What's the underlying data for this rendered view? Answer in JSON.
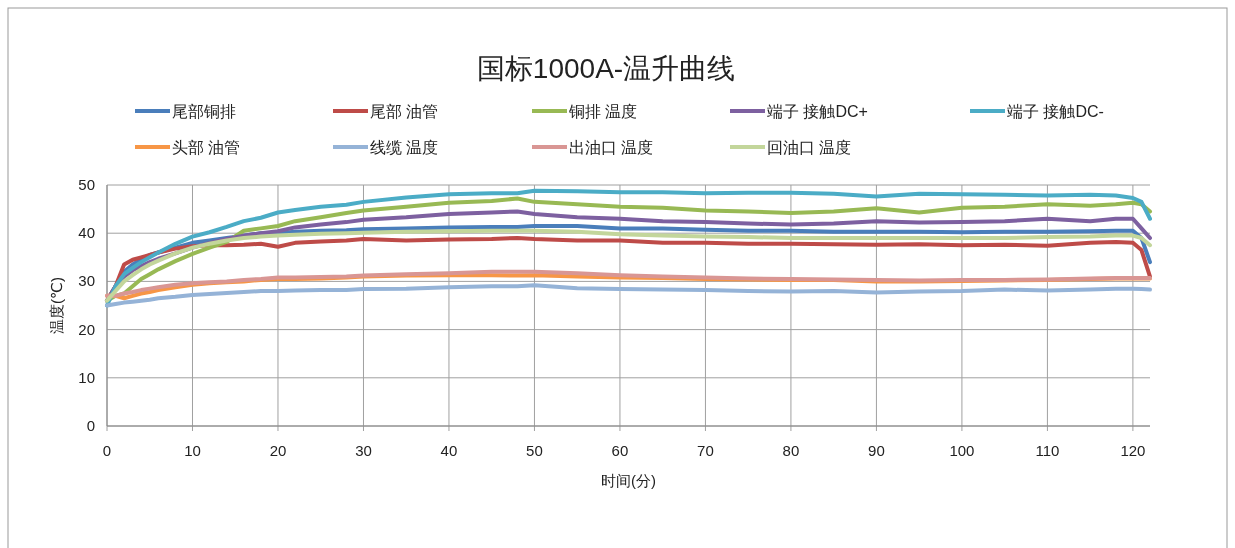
{
  "chart_data": {
    "type": "line",
    "title": "国标1000A-温升曲线",
    "xlabel": "时间(分)",
    "ylabel": "温度(℃)",
    "x": [
      0,
      1,
      2,
      3,
      4,
      5,
      6,
      8,
      10,
      12,
      14,
      16,
      18,
      20,
      22,
      25,
      28,
      30,
      35,
      40,
      45,
      48,
      50,
      55,
      60,
      65,
      70,
      75,
      80,
      85,
      90,
      95,
      100,
      105,
      110,
      115,
      118,
      120,
      121,
      122
    ],
    "xlim": [
      0,
      122
    ],
    "ylim": [
      0,
      50
    ],
    "xticks": [
      0,
      10,
      20,
      30,
      40,
      50,
      60,
      70,
      80,
      90,
      100,
      110,
      120
    ],
    "yticks": [
      0,
      10,
      20,
      30,
      40,
      50
    ],
    "grid": true,
    "legend": "top",
    "series": [
      {
        "name": "尾部铜排",
        "color": "#4a7ebb",
        "values": [
          26,
          29,
          32,
          33.5,
          34.5,
          35.5,
          36,
          37,
          38,
          38.5,
          39,
          39.5,
          40,
          40,
          40.3,
          40.5,
          40.6,
          40.8,
          41,
          41.2,
          41.3,
          41.3,
          41.5,
          41.5,
          41,
          41,
          40.7,
          40.5,
          40.5,
          40.3,
          40.3,
          40.3,
          40.2,
          40.3,
          40.3,
          40.4,
          40.5,
          40.5,
          39,
          34
        ]
      },
      {
        "name": "尾部 油管",
        "color": "#be4b48",
        "values": [
          26,
          29,
          33.5,
          34.5,
          35,
          35.5,
          36,
          36.8,
          37.3,
          37.5,
          37.5,
          37.6,
          37.8,
          37.2,
          38,
          38.3,
          38.5,
          38.8,
          38.5,
          38.7,
          38.8,
          39,
          38.8,
          38.5,
          38.5,
          38,
          38,
          37.8,
          37.8,
          37.7,
          37.6,
          37.7,
          37.5,
          37.6,
          37.4,
          38,
          38.2,
          38,
          36.5,
          31
        ]
      },
      {
        "name": "铜排 温度",
        "color": "#98b954",
        "values": [
          26,
          27,
          27.5,
          29,
          30.5,
          31.5,
          32.5,
          34.2,
          35.7,
          37,
          38.2,
          40.5,
          41,
          41.5,
          42.5,
          43.3,
          44.2,
          44.7,
          45.5,
          46.3,
          46.7,
          47.2,
          46.5,
          46,
          45.5,
          45.3,
          44.7,
          44.5,
          44.2,
          44.5,
          45.2,
          44.3,
          45.3,
          45.5,
          46,
          45.7,
          46,
          46.3,
          46,
          44.5
        ]
      },
      {
        "name": "端子 接触DC+",
        "color": "#7d60a0",
        "values": [
          26,
          29,
          31,
          32.3,
          33.2,
          34,
          34.7,
          35.8,
          37,
          38,
          38.8,
          39.5,
          40,
          40.4,
          41.2,
          41.8,
          42.3,
          42.8,
          43.3,
          44,
          44.3,
          44.5,
          44,
          43.3,
          43,
          42.5,
          42.3,
          42,
          41.8,
          42,
          42.5,
          42.2,
          42.3,
          42.5,
          43,
          42.5,
          43,
          43,
          41,
          39
        ]
      },
      {
        "name": "端子 接触DC-",
        "color": "#4bacc6",
        "values": [
          25,
          29,
          31.5,
          32.8,
          34,
          35,
          36,
          37.8,
          39.3,
          40.2,
          41.3,
          42.5,
          43.2,
          44.3,
          44.8,
          45.5,
          45.9,
          46.5,
          47.4,
          48.1,
          48.3,
          48.3,
          48.8,
          48.7,
          48.5,
          48.5,
          48.3,
          48.4,
          48.4,
          48.2,
          47.6,
          48.2,
          48.1,
          48,
          47.8,
          48,
          47.8,
          47.3,
          46.5,
          43
        ]
      },
      {
        "name": "头部 油管",
        "color": "#f79646",
        "values": [
          27,
          27,
          26.5,
          27,
          27.5,
          27.8,
          28.2,
          28.8,
          29.3,
          29.6,
          29.8,
          30,
          30.3,
          30.5,
          30.5,
          30.6,
          30.8,
          31,
          31.2,
          31.3,
          31.3,
          31.2,
          31.3,
          31,
          30.8,
          30.7,
          30.5,
          30.4,
          30.3,
          30.3,
          30,
          30,
          30.1,
          30.2,
          30.3,
          30.5,
          30.6,
          30.6,
          30.6,
          30.6
        ]
      },
      {
        "name": "线缆 温度",
        "color": "#95b3d7",
        "values": [
          25,
          25.3,
          25.6,
          25.8,
          26,
          26.2,
          26.5,
          26.8,
          27.2,
          27.4,
          27.6,
          27.8,
          28,
          28,
          28.1,
          28.2,
          28.2,
          28.4,
          28.5,
          28.8,
          29,
          29,
          29.2,
          28.6,
          28.4,
          28.3,
          28.2,
          28,
          27.9,
          28,
          27.7,
          27.9,
          28,
          28.3,
          28.1,
          28.3,
          28.5,
          28.5,
          28.4,
          28.3
        ]
      },
      {
        "name": "出油口 温度",
        "color": "#d99694",
        "values": [
          27,
          27,
          27.5,
          27.8,
          28.2,
          28.5,
          28.8,
          29.3,
          29.6,
          29.8,
          30,
          30.3,
          30.5,
          30.8,
          30.8,
          30.9,
          31,
          31.2,
          31.5,
          31.7,
          32,
          32,
          32,
          31.7,
          31.3,
          31,
          30.8,
          30.6,
          30.5,
          30.4,
          30.3,
          30.2,
          30.3,
          30.3,
          30.4,
          30.6,
          30.7,
          30.7,
          30.7,
          30.7
        ]
      },
      {
        "name": "回油口 温度",
        "color": "#c3d69b",
        "values": [
          26,
          28,
          30,
          31.3,
          32.5,
          33.5,
          34.3,
          35.8,
          37,
          37.8,
          38.5,
          39,
          39.3,
          39.5,
          39.7,
          39.9,
          40,
          40.1,
          40.3,
          40.4,
          40.5,
          40.5,
          40.5,
          40.3,
          39.8,
          39.5,
          39.3,
          39.2,
          39,
          39,
          39,
          39,
          39,
          39,
          39.2,
          39.3,
          39.5,
          39.5,
          39,
          37.5
        ]
      }
    ]
  }
}
